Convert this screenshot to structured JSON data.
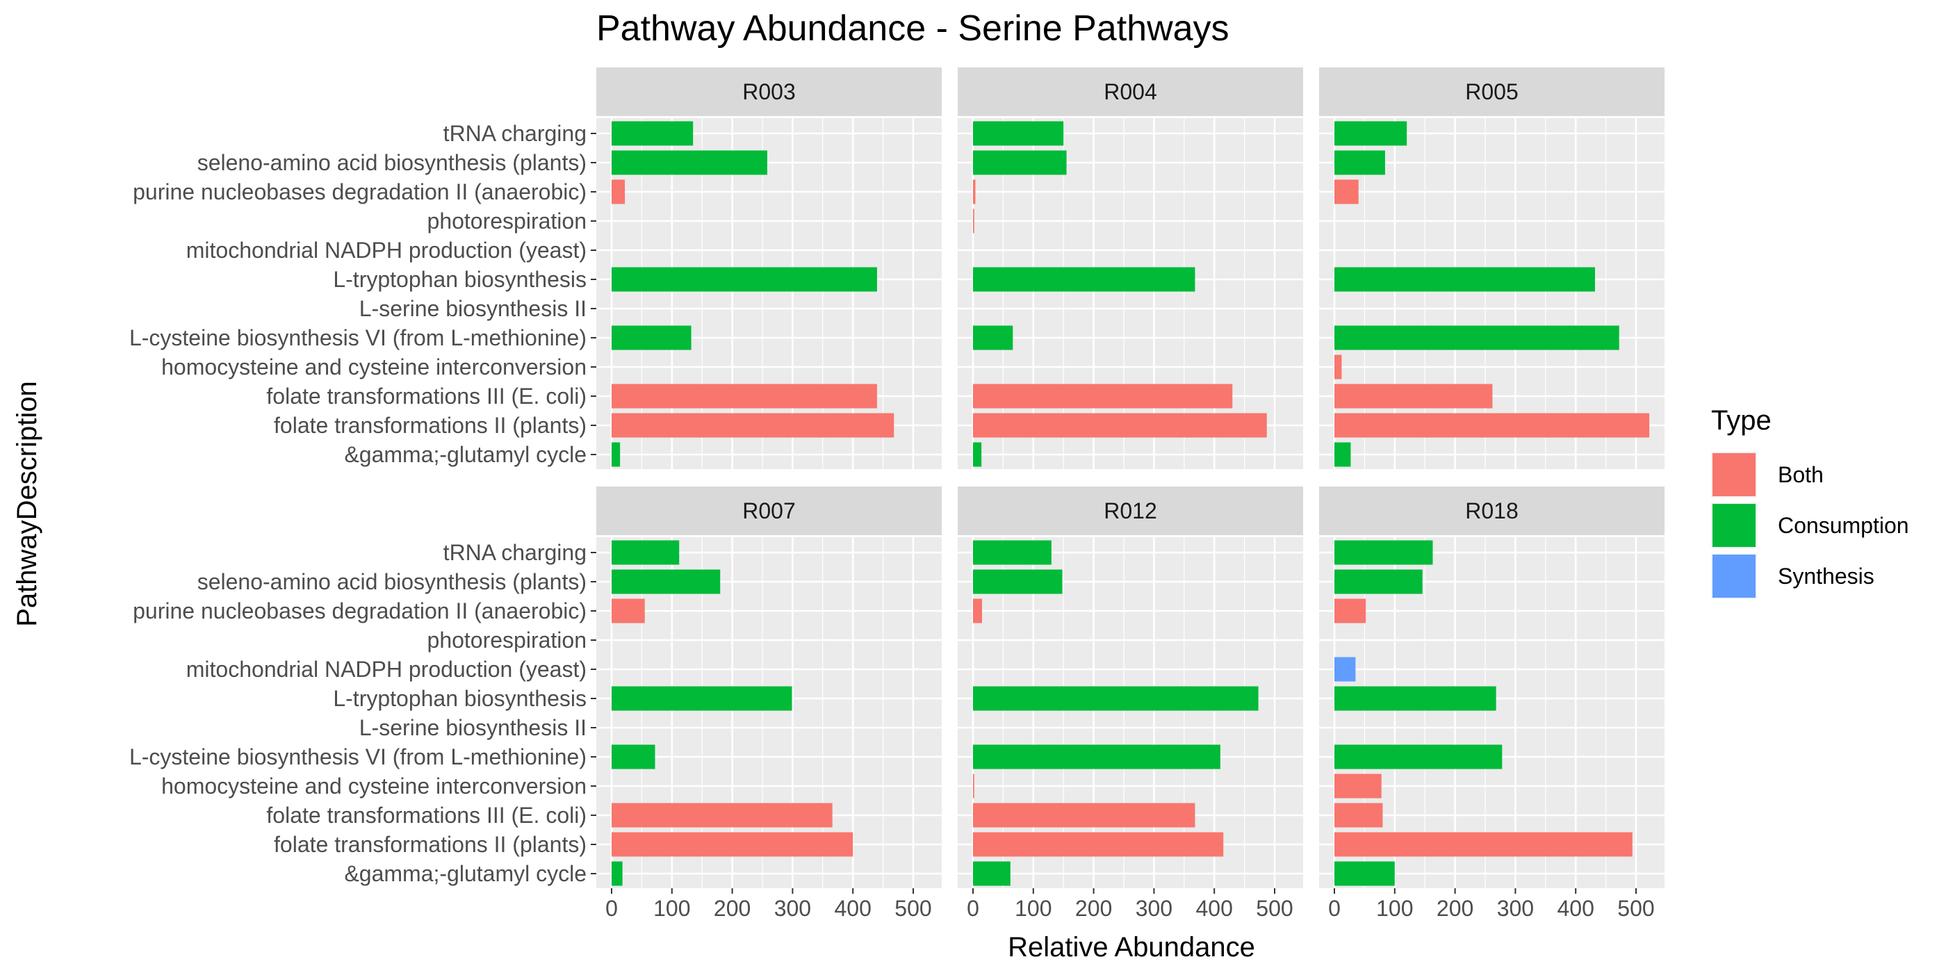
{
  "chart_data": {
    "type": "bar",
    "orientation": "horizontal",
    "title": "Pathway Abundance - Serine Pathways",
    "xlabel": "Relative Abundance",
    "ylabel": "PathwayDescription",
    "xlim": [
      0,
      550
    ],
    "xticks": [
      0,
      100,
      200,
      300,
      400,
      500
    ],
    "grid": true,
    "legend": {
      "title": "Type",
      "placement": "right",
      "entries": [
        {
          "label": "Both",
          "color": "#F8766D"
        },
        {
          "label": "Consumption",
          "color": "#00BA38"
        },
        {
          "label": "Synthesis",
          "color": "#619CFF"
        }
      ]
    },
    "categories": [
      "tRNA charging",
      "seleno-amino acid biosynthesis (plants)",
      "purine nucleobases degradation II (anaerobic)",
      "photorespiration",
      "mitochondrial NADPH production (yeast)",
      "L-tryptophan biosynthesis",
      "L-serine biosynthesis II",
      "L-cysteine biosynthesis VI (from L-methionine)",
      "homocysteine and cysteine interconversion",
      "folate transformations III (E. coli)",
      "folate transformations II (plants)",
      "&gamma;-glutamyl cycle"
    ],
    "panels": [
      {
        "name": "R003",
        "bars": [
          {
            "category": "tRNA charging",
            "value": 135,
            "type": "Consumption"
          },
          {
            "category": "seleno-amino acid biosynthesis (plants)",
            "value": 258,
            "type": "Consumption"
          },
          {
            "category": "purine nucleobases degradation II (anaerobic)",
            "value": 22,
            "type": "Both"
          },
          {
            "category": "L-tryptophan biosynthesis",
            "value": 440,
            "type": "Consumption"
          },
          {
            "category": "L-cysteine biosynthesis VI (from L-methionine)",
            "value": 132,
            "type": "Consumption"
          },
          {
            "category": "folate transformations III (E. coli)",
            "value": 440,
            "type": "Both"
          },
          {
            "category": "folate transformations II (plants)",
            "value": 468,
            "type": "Both"
          },
          {
            "category": "&gamma;-glutamyl cycle",
            "value": 14,
            "type": "Consumption"
          }
        ]
      },
      {
        "name": "R004",
        "bars": [
          {
            "category": "tRNA charging",
            "value": 150,
            "type": "Consumption"
          },
          {
            "category": "seleno-amino acid biosynthesis (plants)",
            "value": 155,
            "type": "Consumption"
          },
          {
            "category": "purine nucleobases degradation II (anaerobic)",
            "value": 4,
            "type": "Both"
          },
          {
            "category": "photorespiration",
            "value": 2,
            "type": "Both"
          },
          {
            "category": "L-tryptophan biosynthesis",
            "value": 368,
            "type": "Consumption"
          },
          {
            "category": "L-cysteine biosynthesis VI (from L-methionine)",
            "value": 66,
            "type": "Consumption"
          },
          {
            "category": "folate transformations III (E. coli)",
            "value": 430,
            "type": "Both"
          },
          {
            "category": "folate transformations II (plants)",
            "value": 487,
            "type": "Both"
          },
          {
            "category": "&gamma;-glutamyl cycle",
            "value": 14,
            "type": "Consumption"
          }
        ]
      },
      {
        "name": "R005",
        "bars": [
          {
            "category": "tRNA charging",
            "value": 120,
            "type": "Consumption"
          },
          {
            "category": "seleno-amino acid biosynthesis (plants)",
            "value": 84,
            "type": "Consumption"
          },
          {
            "category": "purine nucleobases degradation II (anaerobic)",
            "value": 40,
            "type": "Both"
          },
          {
            "category": "L-tryptophan biosynthesis",
            "value": 432,
            "type": "Consumption"
          },
          {
            "category": "L-cysteine biosynthesis VI (from L-methionine)",
            "value": 472,
            "type": "Consumption"
          },
          {
            "category": "homocysteine and cysteine interconversion",
            "value": 12,
            "type": "Both"
          },
          {
            "category": "folate transformations III (E. coli)",
            "value": 262,
            "type": "Both"
          },
          {
            "category": "folate transformations II (plants)",
            "value": 522,
            "type": "Both"
          },
          {
            "category": "&gamma;-glutamyl cycle",
            "value": 27,
            "type": "Consumption"
          }
        ]
      },
      {
        "name": "R007",
        "bars": [
          {
            "category": "tRNA charging",
            "value": 112,
            "type": "Consumption"
          },
          {
            "category": "seleno-amino acid biosynthesis (plants)",
            "value": 180,
            "type": "Consumption"
          },
          {
            "category": "purine nucleobases degradation II (anaerobic)",
            "value": 55,
            "type": "Both"
          },
          {
            "category": "L-tryptophan biosynthesis",
            "value": 299,
            "type": "Consumption"
          },
          {
            "category": "L-cysteine biosynthesis VI (from L-methionine)",
            "value": 72,
            "type": "Consumption"
          },
          {
            "category": "folate transformations III (E. coli)",
            "value": 366,
            "type": "Both"
          },
          {
            "category": "folate transformations II (plants)",
            "value": 400,
            "type": "Both"
          },
          {
            "category": "&gamma;-glutamyl cycle",
            "value": 18,
            "type": "Consumption"
          }
        ]
      },
      {
        "name": "R012",
        "bars": [
          {
            "category": "tRNA charging",
            "value": 130,
            "type": "Consumption"
          },
          {
            "category": "seleno-amino acid biosynthesis (plants)",
            "value": 148,
            "type": "Consumption"
          },
          {
            "category": "purine nucleobases degradation II (anaerobic)",
            "value": 15,
            "type": "Both"
          },
          {
            "category": "L-tryptophan biosynthesis",
            "value": 473,
            "type": "Consumption"
          },
          {
            "category": "L-cysteine biosynthesis VI (from L-methionine)",
            "value": 410,
            "type": "Consumption"
          },
          {
            "category": "homocysteine and cysteine interconversion",
            "value": 2,
            "type": "Both"
          },
          {
            "category": "folate transformations III (E. coli)",
            "value": 368,
            "type": "Both"
          },
          {
            "category": "folate transformations II (plants)",
            "value": 415,
            "type": "Both"
          },
          {
            "category": "&gamma;-glutamyl cycle",
            "value": 62,
            "type": "Consumption"
          }
        ]
      },
      {
        "name": "R018",
        "bars": [
          {
            "category": "tRNA charging",
            "value": 163,
            "type": "Consumption"
          },
          {
            "category": "seleno-amino acid biosynthesis (plants)",
            "value": 146,
            "type": "Consumption"
          },
          {
            "category": "purine nucleobases degradation II (anaerobic)",
            "value": 52,
            "type": "Both"
          },
          {
            "category": "mitochondrial NADPH production (yeast)",
            "value": 35,
            "type": "Synthesis"
          },
          {
            "category": "L-tryptophan biosynthesis",
            "value": 268,
            "type": "Consumption"
          },
          {
            "category": "L-cysteine biosynthesis VI (from L-methionine)",
            "value": 278,
            "type": "Consumption"
          },
          {
            "category": "homocysteine and cysteine interconversion",
            "value": 78,
            "type": "Both"
          },
          {
            "category": "folate transformations III (E. coli)",
            "value": 80,
            "type": "Both"
          },
          {
            "category": "folate transformations II (plants)",
            "value": 494,
            "type": "Both"
          },
          {
            "category": "&gamma;-glutamyl cycle",
            "value": 100,
            "type": "Consumption"
          }
        ]
      }
    ]
  }
}
